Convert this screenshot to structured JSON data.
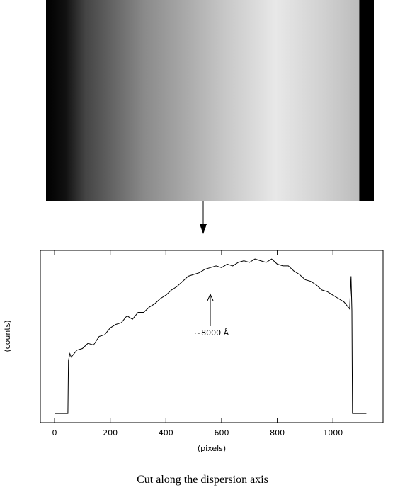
{
  "chart_data": {
    "type": "line",
    "caption": "Cut along the dispersion axis",
    "x_label": "(pixels)",
    "y_label": "(counts)",
    "annotation": "~8000 Å",
    "color": "#000000",
    "x": [
      0,
      45,
      48,
      50,
      55,
      60,
      80,
      100,
      120,
      140,
      160,
      180,
      200,
      220,
      240,
      260,
      280,
      300,
      320,
      340,
      360,
      380,
      400,
      420,
      440,
      460,
      480,
      500,
      520,
      540,
      560,
      580,
      600,
      620,
      640,
      660,
      680,
      700,
      720,
      740,
      760,
      780,
      800,
      820,
      840,
      860,
      880,
      900,
      920,
      940,
      960,
      980,
      1000,
      1020,
      1040,
      1060,
      1065,
      1068,
      1070,
      1075,
      1120
    ],
    "values": [
      5.3,
      5.3,
      5.3,
      36,
      40,
      38,
      42,
      43,
      46,
      45,
      50,
      51,
      55,
      57,
      58,
      62,
      60,
      64,
      64,
      67,
      69,
      72,
      74,
      77,
      79,
      82,
      85,
      86,
      87,
      89,
      90,
      91,
      90,
      92,
      91,
      93,
      94,
      93,
      95,
      94,
      93,
      95,
      92,
      91,
      91,
      88,
      86,
      83,
      82,
      80,
      77,
      76,
      74,
      72,
      70,
      66,
      85,
      65,
      5.3,
      5.3,
      5.3
    ],
    "xlim": [
      -51,
      1180
    ],
    "ylim": [
      0,
      100
    ],
    "xticks": [
      0,
      200,
      400,
      600,
      800,
      1000
    ]
  }
}
